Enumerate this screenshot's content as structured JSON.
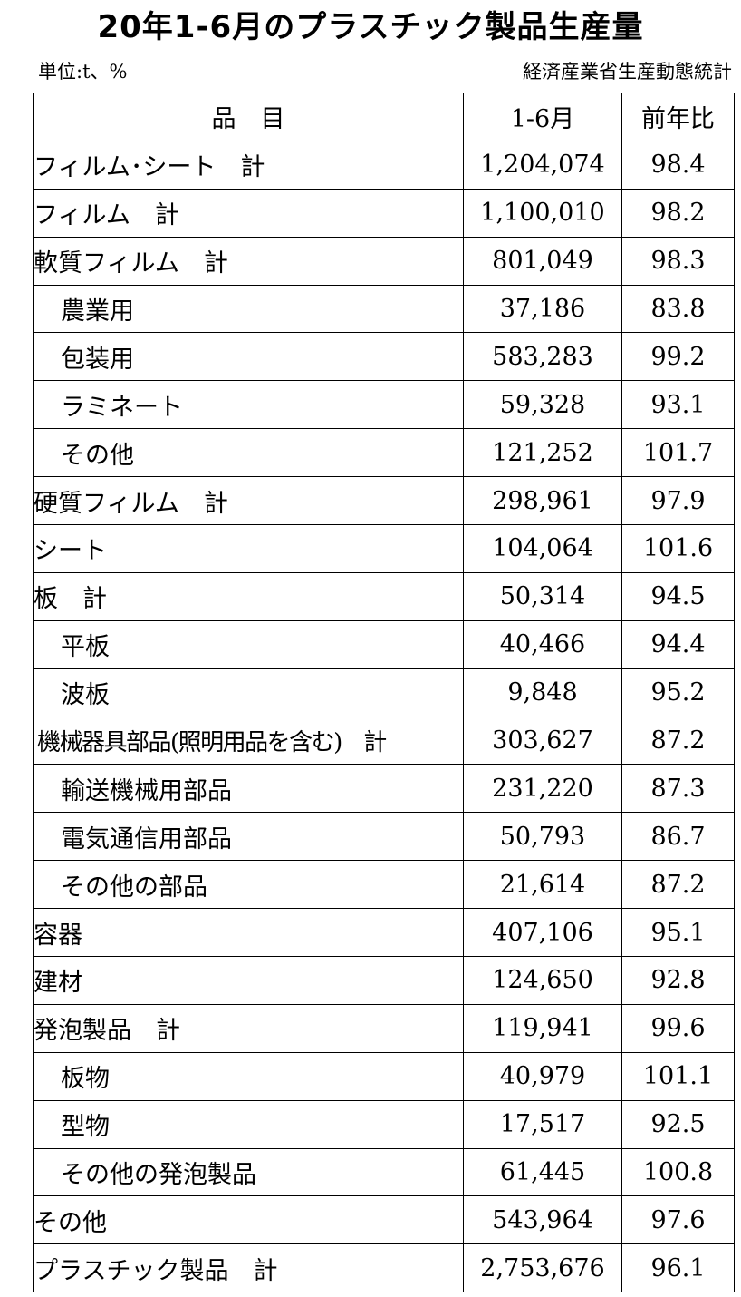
{
  "title": "20年1-6月のプラスチック製品生産量",
  "unit": "単位:t、%",
  "source": "経済産業省生産動態統計",
  "headers": {
    "item": "品　目",
    "period": "1-6月",
    "ratio": "前年比"
  },
  "rows": [
    {
      "name": "フィルム･シート　計",
      "value": "1,204,074",
      "ratio": "98.4",
      "indent": false
    },
    {
      "name": "フィルム　計",
      "value": "1,100,010",
      "ratio": "98.2",
      "indent": false
    },
    {
      "name": "軟質フィルム　計",
      "value": "801,049",
      "ratio": "98.3",
      "indent": false
    },
    {
      "name": "農業用",
      "value": "37,186",
      "ratio": "83.8",
      "indent": true
    },
    {
      "name": "包装用",
      "value": "583,283",
      "ratio": "99.2",
      "indent": true
    },
    {
      "name": "ラミネート",
      "value": "59,328",
      "ratio": "93.1",
      "indent": true
    },
    {
      "name": "その他",
      "value": "121,252",
      "ratio": "101.7",
      "indent": true
    },
    {
      "name": "硬質フィルム　計",
      "value": "298,961",
      "ratio": "97.9",
      "indent": false
    },
    {
      "name": "シート",
      "value": "104,064",
      "ratio": "101.6",
      "indent": false
    },
    {
      "name": "板　計",
      "value": "50,314",
      "ratio": "94.5",
      "indent": false
    },
    {
      "name": "平板",
      "value": "40,466",
      "ratio": "94.4",
      "indent": true
    },
    {
      "name": "波板",
      "value": "9,848",
      "ratio": "95.2",
      "indent": true
    },
    {
      "name": "機械器具部品(照明用品を含む)　計",
      "value": "303,627",
      "ratio": "87.2",
      "indent": false
    },
    {
      "name": "輸送機械用部品",
      "value": "231,220",
      "ratio": "87.3",
      "indent": true
    },
    {
      "name": "電気通信用部品",
      "value": "50,793",
      "ratio": "86.7",
      "indent": true
    },
    {
      "name": "その他の部品",
      "value": "21,614",
      "ratio": "87.2",
      "indent": true
    },
    {
      "name": "容器",
      "value": "407,106",
      "ratio": "95.1",
      "indent": false
    },
    {
      "name": "建材",
      "value": "124,650",
      "ratio": "92.8",
      "indent": false
    },
    {
      "name": "発泡製品　計",
      "value": "119,941",
      "ratio": "99.6",
      "indent": false
    },
    {
      "name": "板物",
      "value": "40,979",
      "ratio": "101.1",
      "indent": true
    },
    {
      "name": "型物",
      "value": "17,517",
      "ratio": "92.5",
      "indent": true
    },
    {
      "name": "その他の発泡製品",
      "value": "61,445",
      "ratio": "100.8",
      "indent": true
    },
    {
      "name": "その他",
      "value": "543,964",
      "ratio": "97.6",
      "indent": false
    },
    {
      "name": "プラスチック製品　計",
      "value": "2,753,676",
      "ratio": "96.1",
      "indent": false
    }
  ]
}
